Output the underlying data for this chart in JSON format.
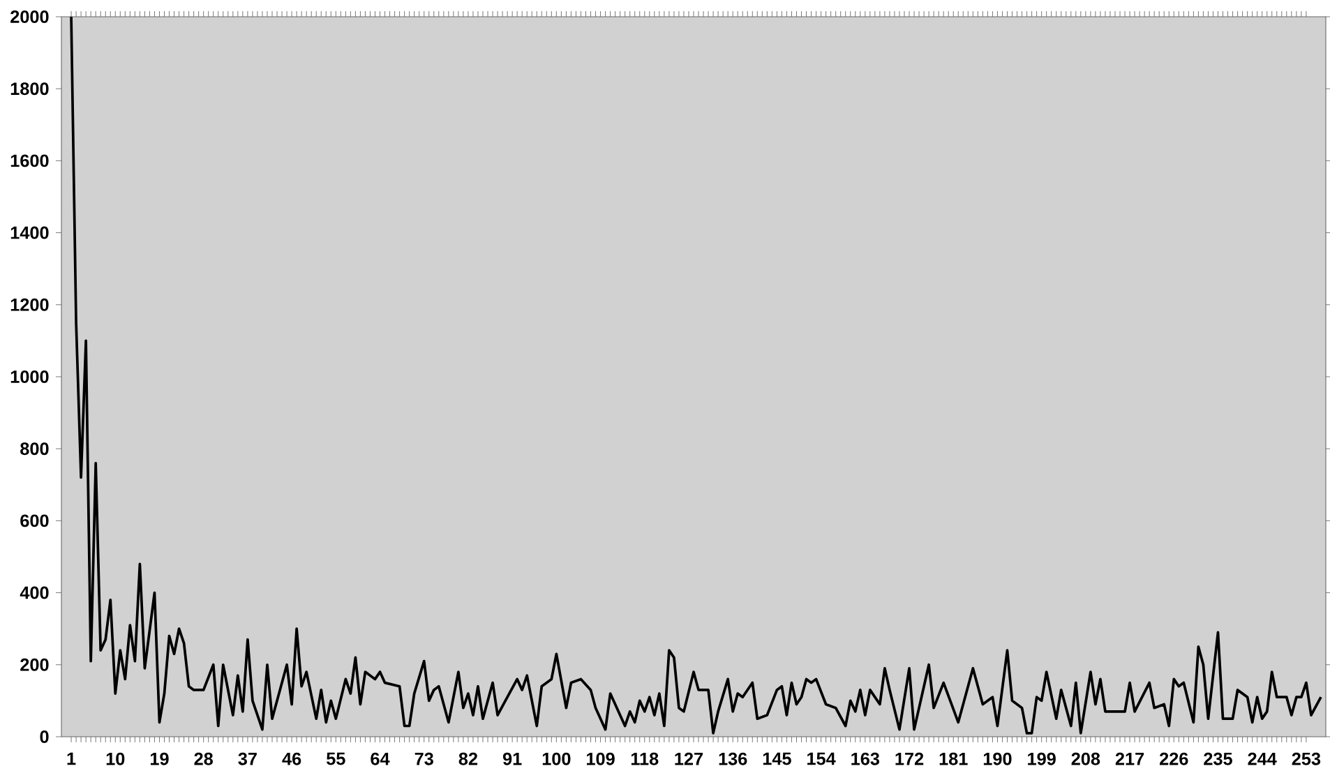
{
  "chart_data": {
    "type": "line",
    "color": "#000000",
    "marker": "none",
    "line_style": "solid",
    "x": [
      1,
      2,
      3,
      4,
      5,
      6,
      7,
      8,
      9,
      10,
      11,
      12,
      13,
      14,
      15,
      16,
      18,
      19,
      20,
      21,
      22,
      23,
      24,
      25,
      26,
      28,
      30,
      31,
      32,
      34,
      35,
      36,
      37,
      38,
      40,
      41,
      42,
      45,
      46,
      47,
      48,
      49,
      51,
      52,
      53,
      54,
      55,
      57,
      58,
      59,
      60,
      61,
      63,
      64,
      65,
      68,
      69,
      70,
      71,
      73,
      74,
      75,
      76,
      78,
      80,
      81,
      82,
      83,
      84,
      85,
      87,
      88,
      90,
      92,
      93,
      94,
      96,
      97,
      99,
      100,
      102,
      103,
      105,
      107,
      108,
      110,
      111,
      112,
      114,
      115,
      116,
      117,
      118,
      119,
      120,
      121,
      122,
      123,
      124,
      125,
      126,
      128,
      129,
      131,
      132,
      133,
      135,
      136,
      137,
      138,
      140,
      141,
      143,
      145,
      146,
      147,
      148,
      149,
      150,
      151,
      152,
      153,
      155,
      157,
      159,
      160,
      161,
      162,
      163,
      164,
      166,
      167,
      168,
      170,
      172,
      173,
      176,
      177,
      179,
      182,
      185,
      187,
      189,
      190,
      192,
      193,
      195,
      196,
      197,
      198,
      199,
      200,
      202,
      203,
      205,
      206,
      207,
      209,
      210,
      211,
      212,
      216,
      217,
      218,
      221,
      222,
      224,
      225,
      226,
      227,
      228,
      230,
      231,
      232,
      233,
      235,
      236,
      238,
      239,
      241,
      242,
      243,
      244,
      245,
      246,
      247,
      249,
      250,
      251,
      252,
      253,
      254,
      256
    ],
    "values": [
      2000,
      1150,
      720,
      1100,
      210,
      760,
      240,
      270,
      380,
      120,
      240,
      160,
      310,
      210,
      480,
      190,
      400,
      40,
      120,
      280,
      230,
      300,
      260,
      140,
      130,
      130,
      200,
      30,
      200,
      60,
      170,
      70,
      270,
      100,
      20,
      200,
      50,
      200,
      90,
      300,
      140,
      180,
      50,
      130,
      40,
      100,
      50,
      160,
      120,
      220,
      90,
      180,
      160,
      180,
      150,
      140,
      30,
      30,
      120,
      210,
      100,
      130,
      140,
      40,
      180,
      80,
      120,
      60,
      140,
      50,
      150,
      60,
      110,
      160,
      130,
      170,
      30,
      140,
      160,
      230,
      80,
      150,
      160,
      130,
      80,
      20,
      120,
      90,
      30,
      70,
      40,
      100,
      70,
      110,
      60,
      120,
      30,
      240,
      220,
      80,
      70,
      180,
      130,
      130,
      10,
      70,
      160,
      70,
      120,
      110,
      150,
      50,
      60,
      130,
      140,
      60,
      150,
      90,
      110,
      160,
      150,
      160,
      90,
      80,
      30,
      100,
      70,
      130,
      60,
      130,
      90,
      190,
      130,
      20,
      190,
      20,
      200,
      80,
      150,
      40,
      190,
      90,
      110,
      30,
      240,
      100,
      80,
      10,
      10,
      110,
      100,
      180,
      50,
      130,
      30,
      150,
      10,
      180,
      90,
      160,
      70,
      70,
      150,
      70,
      150,
      80,
      90,
      30,
      160,
      140,
      150,
      40,
      250,
      200,
      50,
      290,
      50,
      50,
      130,
      110,
      40,
      110,
      50,
      70,
      180,
      110,
      110,
      60,
      110,
      110,
      150,
      60,
      110
    ],
    "xlim": [
      -1,
      257
    ],
    "ylim": [
      0,
      2000
    ],
    "xticks": [
      1,
      10,
      19,
      28,
      37,
      46,
      55,
      64,
      73,
      82,
      91,
      100,
      109,
      118,
      127,
      136,
      145,
      154,
      163,
      172,
      181,
      190,
      199,
      208,
      217,
      226,
      235,
      244,
      253
    ],
    "yticks": [
      0,
      200,
      400,
      600,
      800,
      1000,
      1200,
      1400,
      1600,
      1800,
      2000
    ]
  }
}
